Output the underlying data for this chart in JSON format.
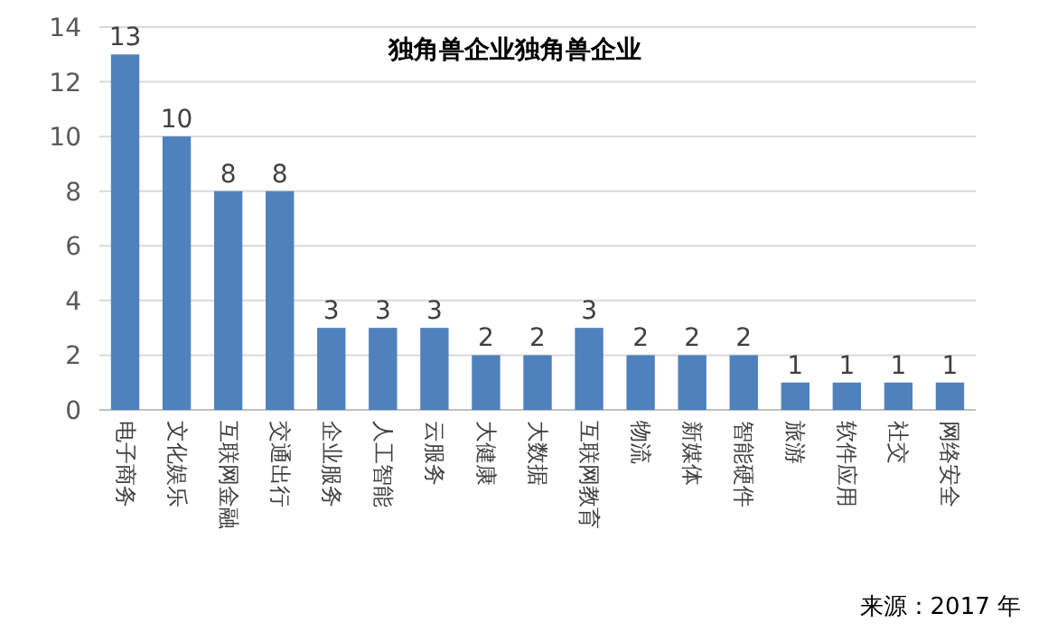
{
  "chart_data": {
    "type": "bar",
    "title": "独角兽企业独角兽企业",
    "categories": [
      "电子商务",
      "文化娱乐",
      "互联网金融",
      "交通出行",
      "企业服务",
      "人工智能",
      "云服务",
      "大健康",
      "大数据",
      "互联网教育",
      "物流",
      "新媒体",
      "智能硬件",
      "旅游",
      "软件应用",
      "社交",
      "网络安全"
    ],
    "values": [
      13,
      10,
      8,
      8,
      3,
      3,
      3,
      2,
      2,
      3,
      2,
      2,
      2,
      1,
      1,
      1,
      1
    ],
    "color": "#4f81bd",
    "ylim": [
      0,
      14
    ],
    "yticks": [
      0,
      2,
      4,
      6,
      8,
      10,
      12,
      14
    ],
    "grid": "y",
    "data_labels": true,
    "annotations": [
      "来源：2017 年"
    ]
  }
}
